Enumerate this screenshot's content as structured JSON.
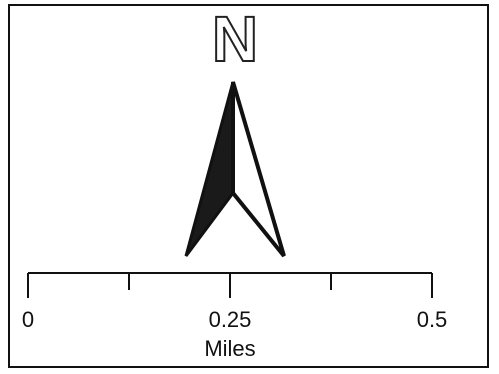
{
  "north_arrow": {
    "letter": "N",
    "fill_color": "#1a1a1a",
    "outline_color": "#111111"
  },
  "scale_bar": {
    "min_value": 0,
    "max_value": 0.5,
    "ticks": [
      {
        "value": 0,
        "label": "0"
      },
      {
        "value": 0.125,
        "label": ""
      },
      {
        "value": 0.25,
        "label": "0.25"
      },
      {
        "value": 0.375,
        "label": ""
      },
      {
        "value": 0.5,
        "label": "0.5"
      }
    ],
    "units": "Miles"
  }
}
